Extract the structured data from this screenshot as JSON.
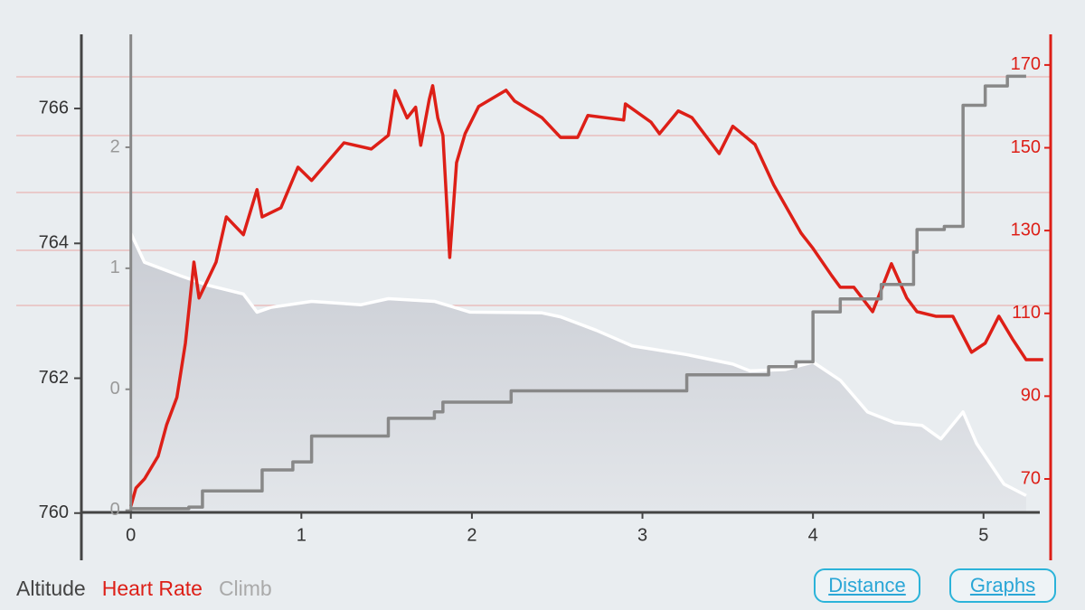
{
  "chart_data": {
    "type": "line",
    "xlim": [
      -0.29,
      5.33
    ],
    "xticks": [
      0,
      1,
      2,
      3,
      4,
      5
    ],
    "ylim": [
      759.3,
      767.1
    ],
    "yticks": [
      760,
      762,
      764,
      766
    ],
    "y2lim": [
      -0.31,
      2.95
    ],
    "y2ticks": [
      {
        "value": 0,
        "label": "0"
      },
      {
        "value": 0.75,
        "label": "0"
      },
      {
        "value": 1.5,
        "label": "1"
      },
      {
        "value": 2.25,
        "label": "2"
      }
    ],
    "y3lim": [
      50.35,
      177.4
    ],
    "y3ticks": [
      70,
      90,
      110,
      130,
      150,
      170
    ],
    "series": [
      {
        "name": "Altitude",
        "color": "#ffffff",
        "label_color": "#444444",
        "axis": "y",
        "fill": true,
        "x": [
          0,
          0.08,
          0.29,
          0.45,
          0.66,
          0.74,
          0.82,
          1.06,
          1.35,
          1.51,
          1.78,
          1.99,
          2.41,
          2.52,
          2.73,
          2.94,
          3.26,
          3.53,
          3.63,
          3.84,
          4.0,
          4.16,
          4.32,
          4.48,
          4.64,
          4.75,
          4.88,
          4.96,
          5.12,
          5.25
        ],
        "values": [
          764.15,
          763.72,
          763.52,
          763.38,
          763.25,
          762.98,
          763.05,
          763.14,
          763.09,
          763.18,
          763.14,
          762.98,
          762.97,
          762.91,
          762.71,
          762.48,
          762.35,
          762.21,
          762.11,
          762.13,
          762.24,
          761.97,
          761.5,
          761.34,
          761.3,
          761.1,
          761.5,
          761.03,
          760.43,
          760.26
        ]
      },
      {
        "name": "Heart Rate",
        "color": "#dd1f17",
        "label_color": "#dd1f17",
        "axis": "y3",
        "fill": false,
        "x": [
          0,
          0.03,
          0.08,
          0.16,
          0.21,
          0.27,
          0.32,
          0.37,
          0.4,
          0.5,
          0.56,
          0.66,
          0.74,
          0.77,
          0.88,
          0.98,
          1.06,
          1.25,
          1.41,
          1.51,
          1.55,
          1.62,
          1.67,
          1.7,
          1.75,
          1.77,
          1.8,
          1.83,
          1.87,
          1.91,
          1.96,
          2.04,
          2.2,
          2.25,
          2.41,
          2.52,
          2.62,
          2.68,
          2.89,
          2.9,
          3.05,
          3.1,
          3.21,
          3.29,
          3.45,
          3.53,
          3.66,
          3.77,
          3.93,
          4.0,
          4.11,
          4.16,
          4.24,
          4.35,
          4.46,
          4.55,
          4.61,
          4.72,
          4.82,
          4.93,
          5.01,
          5.09,
          5.17,
          5.25,
          5.35
        ],
        "values": [
          63.4,
          67.8,
          70,
          75.5,
          83.1,
          89.7,
          102.8,
          122.4,
          113.7,
          122.4,
          133.3,
          129,
          139.9,
          133.3,
          135.5,
          145.3,
          142.1,
          151.2,
          149.7,
          153,
          163.8,
          157.2,
          159.8,
          150.6,
          161.7,
          165,
          157.2,
          153,
          123.5,
          146.4,
          153.4,
          160,
          163.9,
          161.3,
          157.3,
          152.5,
          152.5,
          157.8,
          156.7,
          160.6,
          156.2,
          153.4,
          158.9,
          157.3,
          148.6,
          155.2,
          150.8,
          141,
          129.4,
          125.7,
          119.1,
          116.3,
          116.3,
          110.4,
          122,
          113.7,
          110.4,
          109.3,
          109.3,
          100.6,
          102.8,
          109.3,
          103.8,
          98.8,
          98.8
        ]
      },
      {
        "name": "Climb",
        "color": "#888888",
        "label_color": "#aaaaaa",
        "axis": "y2",
        "fill": false,
        "step": true,
        "x": [
          0,
          0.34,
          0.42,
          0.74,
          0.77,
          0.95,
          1.06,
          1.41,
          1.51,
          1.78,
          1.83,
          2.23,
          3.18,
          3.26,
          3.74,
          3.9,
          4.0,
          4.16,
          4.4,
          4.59,
          4.61,
          4.77,
          4.88,
          5.01,
          5.12,
          5.14,
          5.25
        ],
        "values": [
          0.01,
          0.02,
          0.12,
          0.12,
          0.25,
          0.3,
          0.46,
          0.46,
          0.57,
          0.61,
          0.67,
          0.74,
          0.74,
          0.84,
          0.89,
          0.92,
          1.23,
          1.31,
          1.4,
          1.6,
          1.74,
          1.76,
          2.51,
          2.63,
          2.63,
          2.69,
          2.69
        ]
      }
    ]
  },
  "controls": {
    "buttons": [
      "Distance",
      "Graphs"
    ]
  }
}
